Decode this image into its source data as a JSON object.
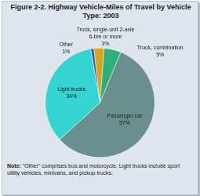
{
  "chart_data": {
    "type": "pie",
    "title": "Figure 2-2. Highway Vehicle-Miles of Travel by Vehicle Type: 2003",
    "categories": [
      "Other",
      "Truck, single-unit 2-axle 6-tire or more",
      "Truck, combination",
      "Passenger car",
      "Light trucks"
    ],
    "values": [
      1,
      3,
      5,
      57,
      34
    ],
    "value_labels": [
      "1%",
      "3%",
      "5%",
      "57%",
      "34%"
    ],
    "colors": [
      "#3a5fb5",
      "#d9a520",
      "#2fb07a",
      "#6b8f8c",
      "#36d3d3"
    ],
    "data_labels": true,
    "note": "Note: \"Other\" comprises bus and motorcycle. Light trucks include sport utility vehicles, minivans, and pickup trucks."
  }
}
